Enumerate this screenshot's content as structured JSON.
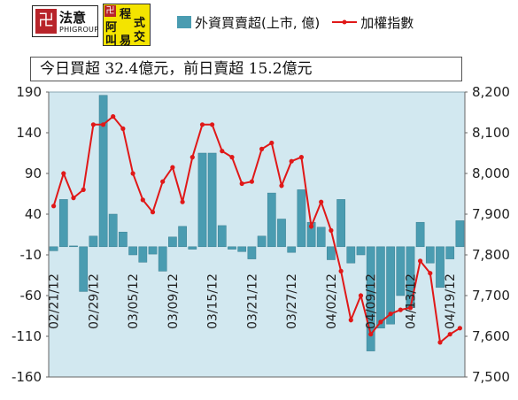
{
  "logos": {
    "left_name": "法意",
    "left_sub": "PHIGROUP",
    "left_mark": "卍",
    "right_chars": [
      "程",
      "式",
      "阿",
      "叫",
      "易",
      "交"
    ],
    "right_mark": "卍"
  },
  "legend": {
    "bar_label": "外資買賣超(上市, 億)",
    "line_label": "加權指數"
  },
  "banner_text": "今日買超 32.4億元，前日賣超 15.2億元",
  "colors": {
    "bar": "#4a9cb1",
    "line": "#e01818",
    "plot_bg": "#d2e8f0"
  },
  "chart_data": {
    "type": "bar+line",
    "left_axis": {
      "min": -160,
      "max": 190,
      "ticks": [
        190,
        140,
        90,
        40,
        -10,
        -60,
        -110,
        -160
      ]
    },
    "right_axis": {
      "min": 7500,
      "max": 8200,
      "ticks": [
        "8,200",
        "8,100",
        "8,000",
        "7,900",
        "7,800",
        "7,700",
        "7,600",
        "7,500"
      ],
      "tick_values": [
        8200,
        8100,
        8000,
        7900,
        7800,
        7700,
        7600,
        7500
      ]
    },
    "x_labels": [
      "02/21/12",
      "02/29/12",
      "03/05/12",
      "03/09/12",
      "03/15/12",
      "03/21/12",
      "03/27/12",
      "04/02/12",
      "04/09/12",
      "04/13/12",
      "04/19/12"
    ],
    "x_label_indices": [
      0,
      4,
      8,
      12,
      16,
      20,
      24,
      28,
      32,
      36,
      40
    ],
    "bar_values": [
      -5,
      58,
      1,
      -55,
      13,
      186,
      40,
      18,
      -10,
      -19,
      -9,
      -30,
      12,
      25,
      -3,
      115,
      115,
      26,
      -3,
      -6,
      -15,
      13,
      66,
      34,
      -7,
      70,
      30,
      24,
      -16,
      58,
      -20,
      -10,
      -128,
      -100,
      -95,
      -60,
      -75,
      30,
      -20,
      -50,
      -15,
      32
    ],
    "line_values": [
      7920,
      8000,
      7940,
      7960,
      8120,
      8120,
      8140,
      8110,
      8000,
      7935,
      7905,
      7980,
      8015,
      7930,
      8040,
      8120,
      8120,
      8055,
      8040,
      7975,
      7980,
      8060,
      8075,
      7970,
      8030,
      8040,
      7870,
      7930,
      7860,
      7760,
      7640,
      7700,
      7605,
      7635,
      7655,
      7665,
      7670,
      7785,
      7755,
      7585,
      7605,
      7620
    ],
    "grid": false
  }
}
